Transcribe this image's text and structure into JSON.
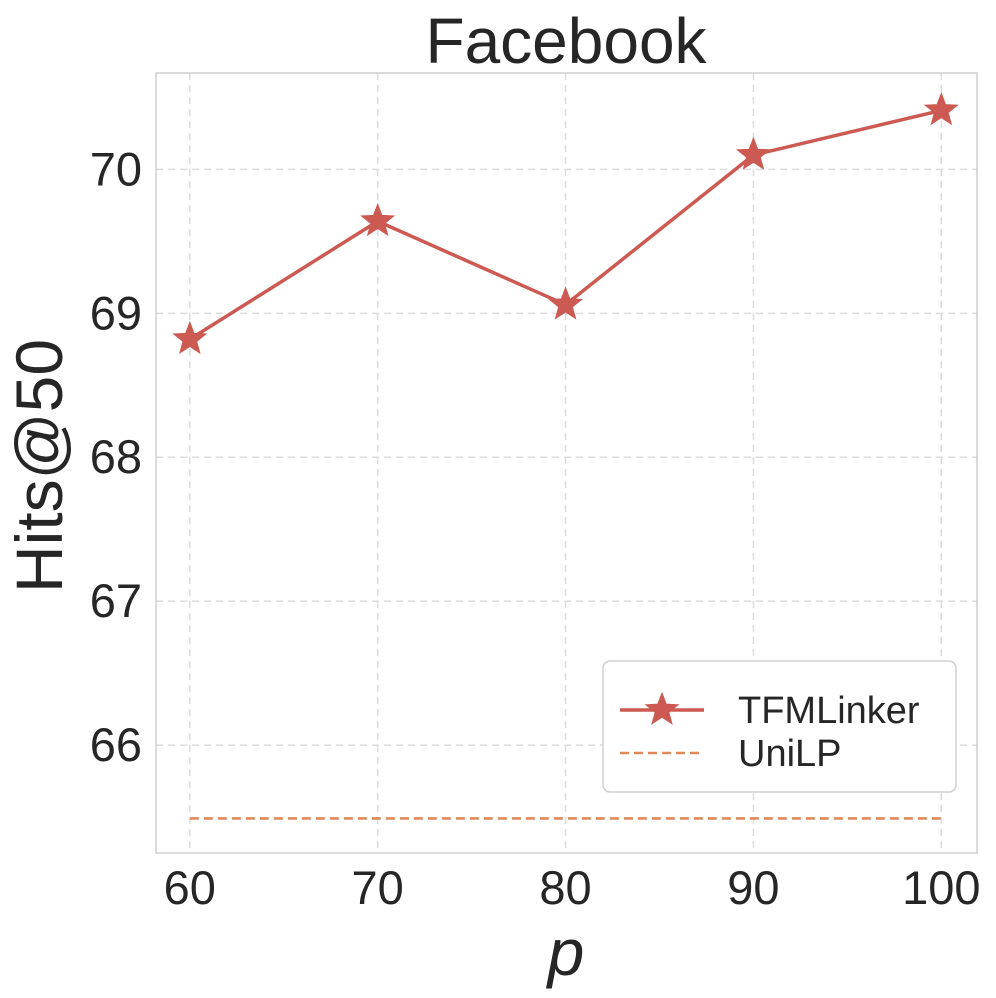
{
  "chart_data": {
    "type": "line",
    "title": "Facebook",
    "xlabel": "p",
    "ylabel": "Hits@50",
    "x": [
      60,
      70,
      80,
      90,
      100
    ],
    "xlim": [
      58.2,
      101.9
    ],
    "ylim": [
      65.25,
      70.67
    ],
    "xticks": [
      60,
      70,
      80,
      90,
      100
    ],
    "yticks": [
      66,
      67,
      68,
      69,
      70
    ],
    "grid": true,
    "legend_position": "lower-right",
    "series": [
      {
        "name": "TFMLinker",
        "values": [
          68.82,
          69.64,
          69.06,
          70.1,
          70.41
        ],
        "color": "#cd5a52",
        "style": "solid",
        "marker": "star-marker"
      },
      {
        "name": "UniLP",
        "values": [
          65.49,
          65.49,
          65.49,
          65.49,
          65.49
        ],
        "color": "#e08a5a",
        "style": "dashed",
        "marker": "none"
      }
    ]
  }
}
